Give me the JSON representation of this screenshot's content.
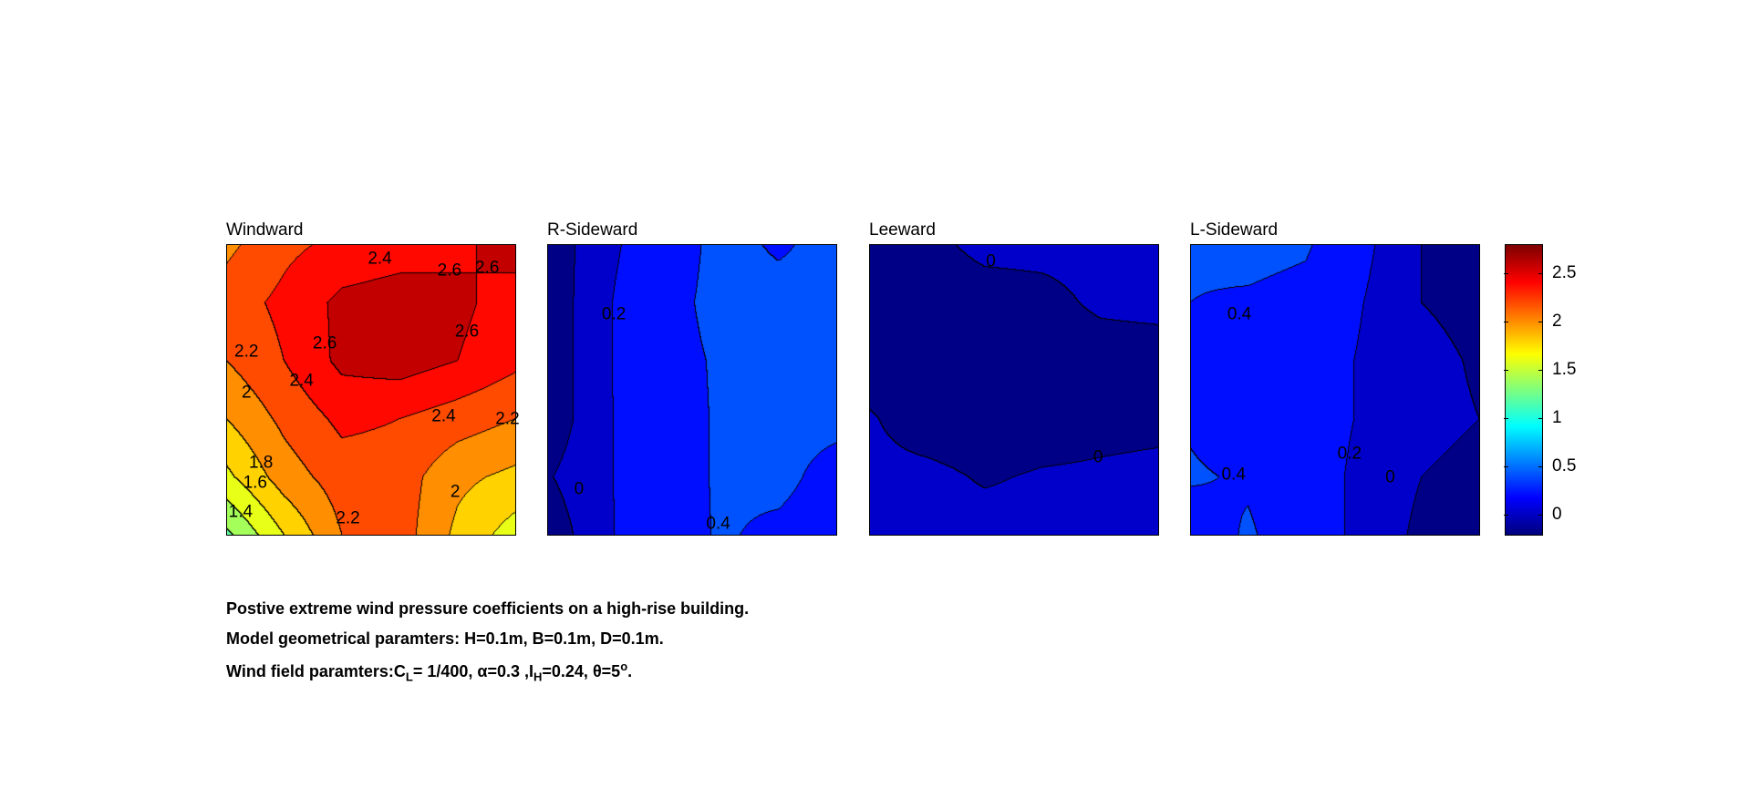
{
  "chart_data": {
    "type": "heatmap",
    "subtype": "filled-contour",
    "colormap": "jet",
    "clim": [
      -0.22,
      2.8
    ],
    "contour_step": 0.2,
    "colorbar": {
      "ticks": [
        0,
        0.5,
        1,
        1.5,
        2,
        2.5
      ],
      "tick_labels": [
        "0",
        "0.5",
        "1",
        "1.5",
        "2",
        "2.5"
      ]
    },
    "panels": [
      {
        "title": "Windward",
        "grid": [
          [
            2.15,
            2.35,
            2.45,
            2.5,
            2.55,
            2.7
          ],
          [
            2.3,
            2.45,
            2.65,
            2.7,
            2.65,
            2.5
          ],
          [
            2.2,
            2.4,
            2.65,
            2.7,
            2.6,
            2.45
          ],
          [
            2.0,
            2.25,
            2.45,
            2.4,
            2.3,
            2.2
          ],
          [
            1.75,
            2.1,
            2.3,
            2.3,
            2.05,
            1.95
          ],
          [
            1.35,
            1.8,
            2.2,
            2.3,
            1.95,
            1.7
          ]
        ],
        "labels": [
          "2.4",
          "2.6",
          "2.6",
          "2.6",
          "2.6",
          "2.2",
          "2.4",
          "2",
          "2.4",
          "2.2",
          "1.8",
          "1.6",
          "2",
          "1.4",
          "2.2"
        ]
      },
      {
        "title": "R-Sideward",
        "grid": [
          [
            -0.15,
            0.16,
            0.3,
            0.45,
            0.38,
            0.45
          ],
          [
            -0.15,
            0.18,
            0.34,
            0.45,
            0.45,
            0.45
          ],
          [
            -0.15,
            0.18,
            0.34,
            0.42,
            0.45,
            0.45
          ],
          [
            -0.15,
            0.18,
            0.32,
            0.42,
            0.45,
            0.45
          ],
          [
            -0.02,
            0.18,
            0.32,
            0.42,
            0.45,
            0.33
          ],
          [
            -0.15,
            0.18,
            0.3,
            0.42,
            0.36,
            0.3
          ]
        ],
        "labels": [
          "0.2",
          "0",
          "0.4"
        ]
      },
      {
        "title": "Leeward",
        "grid": [
          [
            -0.05,
            -0.05,
            0.05,
            0.05,
            0.05,
            0.05
          ],
          [
            -0.1,
            -0.1,
            -0.08,
            -0.05,
            0.03,
            0.05
          ],
          [
            -0.1,
            -0.12,
            -0.12,
            -0.1,
            -0.08,
            -0.08
          ],
          [
            0.02,
            -0.1,
            -0.12,
            -0.1,
            -0.06,
            -0.05
          ],
          [
            0.05,
            0.05,
            -0.02,
            0.02,
            0.03,
            0.05
          ],
          [
            0.08,
            0.08,
            0.08,
            0.08,
            0.08,
            0.08
          ]
        ],
        "labels": [
          "0",
          "0"
        ]
      },
      {
        "title": "L-Sideward",
        "grid": [
          [
            0.42,
            0.45,
            0.42,
            0.25,
            0.0,
            -0.05
          ],
          [
            0.4,
            0.38,
            0.35,
            0.2,
            0.0,
            -0.05
          ],
          [
            0.3,
            0.3,
            0.3,
            0.18,
            0.05,
            -0.02
          ],
          [
            0.38,
            0.3,
            0.3,
            0.18,
            0.05,
            0.0
          ],
          [
            0.42,
            0.38,
            0.3,
            0.15,
            0.0,
            -0.05
          ],
          [
            0.3,
            0.42,
            0.3,
            0.15,
            -0.05,
            -0.05
          ]
        ],
        "labels": [
          "0.4",
          "0.4",
          "0.2",
          "0"
        ]
      }
    ]
  },
  "caption": {
    "line1": "Postive extreme  wind pressure coefficients on a high-rise building.",
    "line2": "Model geometrical paramters: H=0.1m, B=0.1m, D=0.1m.",
    "line3_a": "Wind field paramters:C",
    "line3_sub1": "L",
    "line3_b": "= 1/400, α=0.3 ,I",
    "line3_sub2": "H",
    "line3_c": "=0.24, θ=5",
    "line3_sup": "o",
    "line3_d": "."
  }
}
